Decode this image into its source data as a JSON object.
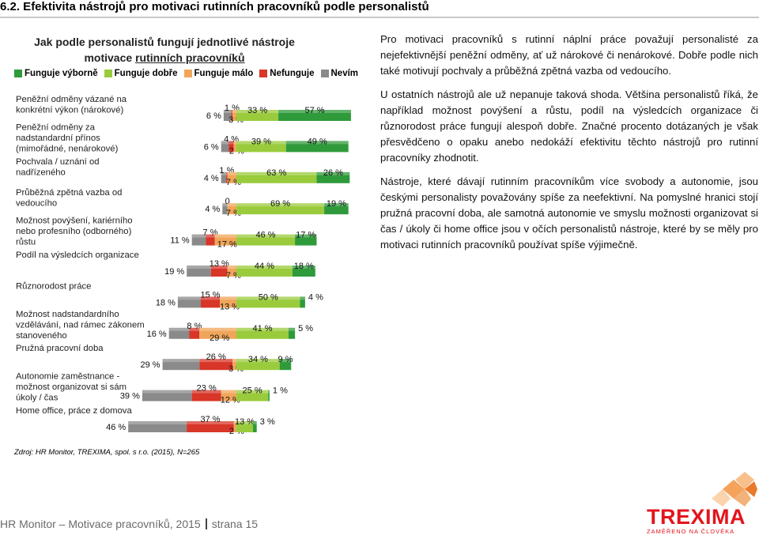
{
  "heading": "6.2.   Efektivita nástrojů pro motivaci rutinních pracovníků podle personalistů",
  "chart_title_line1": "Jak podle personalistů fungují jednotlivé nástroje",
  "chart_title_line2_prefix": "motivace ",
  "chart_title_line2_underlined": "rutinních pracovníků",
  "legend": [
    {
      "label": "Funguje výborně",
      "color": "#2e9a3a"
    },
    {
      "label": "Funguje dobře",
      "color": "#9acb3c"
    },
    {
      "label": "Funguje málo",
      "color": "#f0a65a"
    },
    {
      "label": "Nefunguje",
      "color": "#d73628"
    },
    {
      "label": "Nevím",
      "color": "#8a8a8a"
    }
  ],
  "chart_data": {
    "type": "bar",
    "subtype": "diverging-stacked-horizontal",
    "series_order": [
      "Nevím",
      "Nefunguje",
      "Funguje málo",
      "Funguje dobře",
      "Funguje výborně"
    ],
    "categories": [
      {
        "label": "Peněžní odměny vázané na konkrétní výkon (nárokové)",
        "values": [
          6,
          1,
          3,
          33,
          57
        ],
        "value_labels": [
          "6 %",
          "1 %",
          "3 %",
          "33 %",
          "57 %"
        ]
      },
      {
        "label": "Peněžní odměny za nadstandardní přínos (mimořádné, nenárokové)",
        "values": [
          6,
          4,
          2,
          39,
          49
        ],
        "value_labels": [
          "6 %",
          "4 %",
          "2 %",
          "39 %",
          "49 %"
        ]
      },
      {
        "label": "Pochvala / uznání od nadřízeného",
        "values": [
          4,
          1,
          7,
          63,
          26
        ],
        "value_labels": [
          "4 %",
          "1 %",
          "7 %",
          "63 %",
          "26 %"
        ]
      },
      {
        "label": "Průběžná zpětná vazba od vedoucího",
        "values": [
          4,
          0,
          7,
          69,
          19
        ],
        "value_labels": [
          "4 %",
          "0",
          "7 %",
          "69 %",
          "19 %"
        ]
      },
      {
        "label": "Možnost povýšení, kariérního nebo profesního (odborného) růstu",
        "values": [
          11,
          7,
          17,
          46,
          17
        ],
        "value_labels": [
          "11 %",
          "7 %",
          "17 %",
          "46 %",
          "17 %"
        ]
      },
      {
        "label": "Podíl na výsledcích organizace",
        "values": [
          19,
          13,
          7,
          44,
          18
        ],
        "value_labels": [
          "19 %",
          "13 %",
          "7 %",
          "44 %",
          "18 %"
        ]
      },
      {
        "label": "Různorodost práce",
        "values": [
          18,
          15,
          13,
          50,
          4
        ],
        "value_labels": [
          "18 %",
          "15 %",
          "13 %",
          "50 %",
          "4 %"
        ]
      },
      {
        "label": "Možnost nadstandardního vzdělávání, nad rámec zákonem stanoveného",
        "values": [
          16,
          8,
          29,
          41,
          5
        ],
        "value_labels": [
          "16 %",
          "8 %",
          "29 %",
          "41 %",
          "5 %"
        ]
      },
      {
        "label": "Pružná pracovní doba",
        "values": [
          29,
          26,
          3,
          34,
          9
        ],
        "value_labels": [
          "29 %",
          "26 %",
          "3 %",
          "34 %",
          "9 %"
        ]
      },
      {
        "label": "Autonomie zaměstnance - možnost organizovat si sám úkoly / čas",
        "values": [
          39,
          23,
          12,
          25,
          1
        ],
        "value_labels": [
          "39 %",
          "23 %",
          "12 %",
          "25 %",
          "1 %"
        ]
      },
      {
        "label": "Home office, práce z domova",
        "values": [
          46,
          37,
          2,
          13,
          3
        ],
        "value_labels": [
          "46 %",
          "37 %",
          "2 %",
          "13 %",
          "3 %"
        ]
      }
    ]
  },
  "source": "Zdroj: HR  Monitor, TREXIMA, spol. s r.o.  (2015), N=265",
  "paragraphs": [
    "Pro motivaci pracovníků s rutinní náplní práce považují personalisté za nejefektivnější peněžní odměny, ať už nárokové či nenárokové. Dobře podle nich také motivují pochvaly a průběžná zpětná vazba od vedoucího.",
    "U ostatních nástrojů ale už nepanuje taková shoda. Většina personalistů říká, že například možnost povýšení a růstu, podíl na výsledcích organizace či různorodost práce fungují alespoň dobře. Značné procento dotázaných je však přesvědčeno o opaku anebo nedokáží efektivitu těchto nástrojů pro rutinní pracovníky zhodnotit.",
    "Nástroje, které dávají rutinním pracovníkům více svobody a autonomie, jsou českými personalisty považovány spíše za neefektivní. Na pomyslné hranici stojí pružná pracovní doba, ale samotná autonomie ve smyslu možnosti organizovat si čas / úkoly či home office jsou v očích personalistů nástroje, které by se měly pro motivaci rutinních pracovníků používat spíše výjimečně."
  ],
  "footer": {
    "left": "HR Monitor – Motivace pracovníků, 2015",
    "right": "strana 15"
  },
  "logo": {
    "name": "TREXIMA",
    "tagline": "ZAMĚŘENO NA ČLOVĚKA",
    "color": "#e3141c"
  }
}
